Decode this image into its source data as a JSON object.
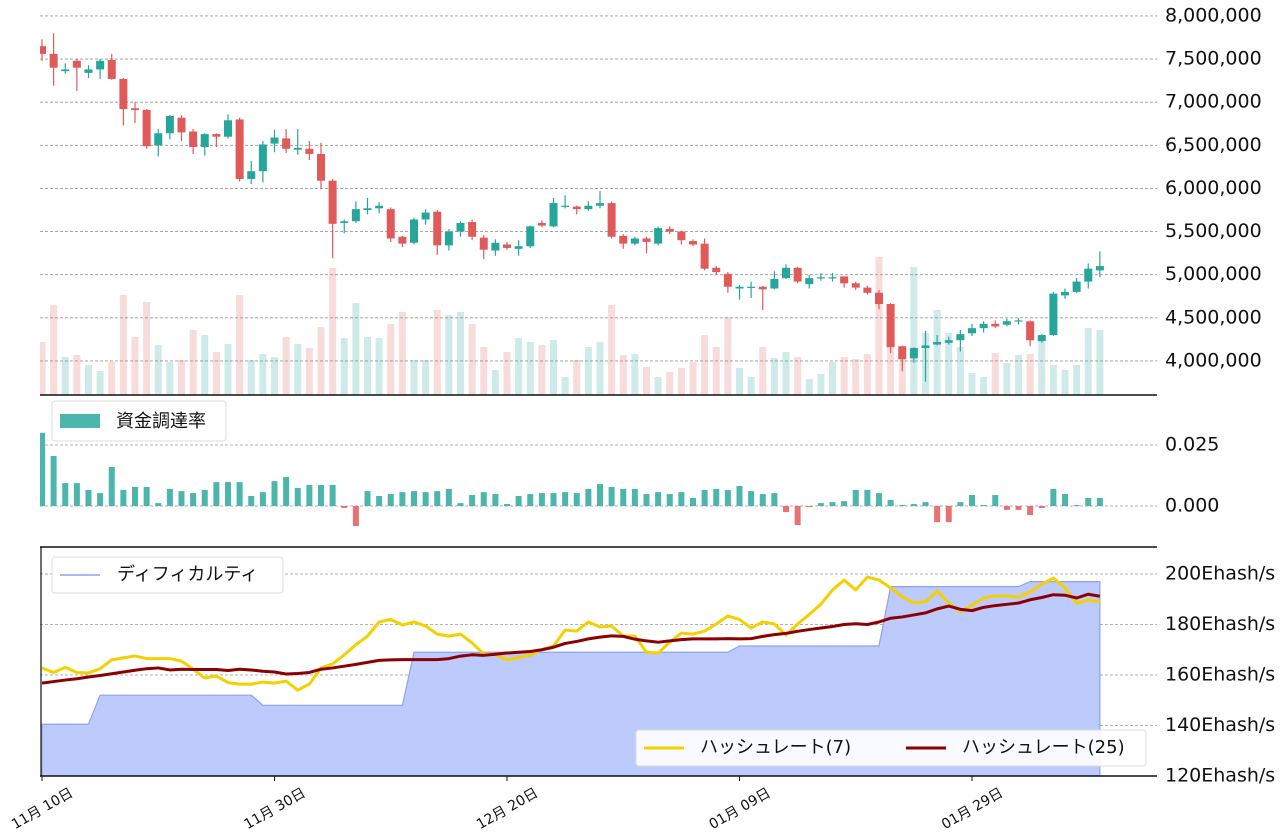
{
  "chart_data": [
    {
      "type": "candlestick",
      "x": [
        "11-10",
        "11-11",
        "11-12",
        "11-13",
        "11-14",
        "11-15",
        "11-16",
        "11-17",
        "11-18",
        "11-19",
        "11-20",
        "11-21",
        "11-22",
        "11-23",
        "11-24",
        "11-25",
        "11-26",
        "11-27",
        "11-28",
        "11-29",
        "11-30",
        "12-01",
        "12-02",
        "12-03",
        "12-04",
        "12-05",
        "12-06",
        "12-07",
        "12-08",
        "12-09",
        "12-10",
        "12-11",
        "12-12",
        "12-13",
        "12-14",
        "12-15",
        "12-16",
        "12-17",
        "12-18",
        "12-19",
        "12-20",
        "12-21",
        "12-22",
        "12-23",
        "12-24",
        "12-25",
        "12-26",
        "12-27",
        "12-28",
        "12-29",
        "12-30",
        "12-31",
        "01-01",
        "01-02",
        "01-03",
        "01-04",
        "01-05",
        "01-06",
        "01-07",
        "01-08",
        "01-09",
        "01-10",
        "01-11",
        "01-12",
        "01-13",
        "01-14",
        "01-15",
        "01-16",
        "01-17",
        "01-18",
        "01-19",
        "01-20",
        "01-21",
        "01-22",
        "01-23",
        "01-24",
        "01-25",
        "01-26",
        "01-27",
        "01-28",
        "01-29",
        "01-30",
        "01-31",
        "02-01",
        "02-02",
        "02-03",
        "02-04",
        "02-05",
        "02-06",
        "02-07",
        "02-08",
        "02-09"
      ],
      "open": [
        7650000,
        7560000,
        7360000,
        7480000,
        7340000,
        7380000,
        7490000,
        7270000,
        6930000,
        6910000,
        6500000,
        6640000,
        6820000,
        6660000,
        6480000,
        6630000,
        6600000,
        6800000,
        6110000,
        6200000,
        6520000,
        6580000,
        6450000,
        6460000,
        6400000,
        6090000,
        5600000,
        5620000,
        5750000,
        5770000,
        5760000,
        5440000,
        5370000,
        5640000,
        5730000,
        5340000,
        5500000,
        5610000,
        5430000,
        5280000,
        5350000,
        5300000,
        5330000,
        5600000,
        5560000,
        5790000,
        5790000,
        5760000,
        5800000,
        5830000,
        5450000,
        5360000,
        5420000,
        5360000,
        5530000,
        5500000,
        5390000,
        5360000,
        5080000,
        5010000,
        4840000,
        4850000,
        4860000,
        4840000,
        4960000,
        5080000,
        4890000,
        4960000,
        4960000,
        4980000,
        4900000,
        4850000,
        4790000,
        4660000,
        4170000,
        4030000,
        4150000,
        4190000,
        4210000,
        4240000,
        4320000,
        4380000,
        4430000,
        4420000,
        4460000,
        4460000,
        4230000,
        4300000,
        4760000,
        4800000,
        4920000,
        5050000
      ],
      "high": [
        7730000,
        7800000,
        7450000,
        7500000,
        7430000,
        7500000,
        7560000,
        7280000,
        7000000,
        6920000,
        6690000,
        6850000,
        6850000,
        6690000,
        6640000,
        6640000,
        6860000,
        6820000,
        6320000,
        6550000,
        6680000,
        6690000,
        6690000,
        6550000,
        6530000,
        6110000,
        5640000,
        5850000,
        5890000,
        5840000,
        5780000,
        5450000,
        5660000,
        5760000,
        5750000,
        5530000,
        5620000,
        5640000,
        5460000,
        5410000,
        5380000,
        5400000,
        5570000,
        5630000,
        5890000,
        5920000,
        5800000,
        5850000,
        5970000,
        5850000,
        5470000,
        5440000,
        5440000,
        5560000,
        5560000,
        5510000,
        5410000,
        5420000,
        5100000,
        5030000,
        4880000,
        4920000,
        4870000,
        5040000,
        5120000,
        5090000,
        5000000,
        5020000,
        5020000,
        4980000,
        4920000,
        4870000,
        4820000,
        4670000,
        4180000,
        4160000,
        4350000,
        4300000,
        4280000,
        4360000,
        4430000,
        4460000,
        4470000,
        4490000,
        4500000,
        4470000,
        4310000,
        4800000,
        4840000,
        4960000,
        5130000,
        5270000
      ],
      "low": [
        7480000,
        7190000,
        7330000,
        7130000,
        7280000,
        7270000,
        7260000,
        6730000,
        6760000,
        6460000,
        6370000,
        6570000,
        6550000,
        6400000,
        6380000,
        6480000,
        6580000,
        6080000,
        6050000,
        6070000,
        6420000,
        6410000,
        6390000,
        6330000,
        5990000,
        5190000,
        5480000,
        5600000,
        5700000,
        5710000,
        5380000,
        5320000,
        5350000,
        5580000,
        5230000,
        5280000,
        5440000,
        5400000,
        5180000,
        5220000,
        5290000,
        5220000,
        5310000,
        5550000,
        5550000,
        5770000,
        5700000,
        5740000,
        5770000,
        5420000,
        5300000,
        5340000,
        5250000,
        5340000,
        5470000,
        5350000,
        5330000,
        5050000,
        5000000,
        4790000,
        4710000,
        4730000,
        4590000,
        4830000,
        4950000,
        4900000,
        4840000,
        4930000,
        4920000,
        4850000,
        4820000,
        4770000,
        4600000,
        4090000,
        3880000,
        3980000,
        3760000,
        4180000,
        4190000,
        4110000,
        4290000,
        4330000,
        4380000,
        4400000,
        4420000,
        4170000,
        4210000,
        4290000,
        4720000,
        4790000,
        4840000,
        4970000
      ],
      "close": [
        7560000,
        7400000,
        7380000,
        7400000,
        7380000,
        7480000,
        7270000,
        6920000,
        6910000,
        6490000,
        6640000,
        6840000,
        6650000,
        6480000,
        6630000,
        6600000,
        6790000,
        6110000,
        6200000,
        6510000,
        6590000,
        6460000,
        6470000,
        6400000,
        6090000,
        5590000,
        5620000,
        5760000,
        5770000,
        5800000,
        5420000,
        5360000,
        5640000,
        5720000,
        5340000,
        5500000,
        5600000,
        5440000,
        5290000,
        5370000,
        5310000,
        5330000,
        5560000,
        5570000,
        5830000,
        5800000,
        5760000,
        5800000,
        5830000,
        5440000,
        5360000,
        5420000,
        5380000,
        5540000,
        5500000,
        5400000,
        5350000,
        5070000,
        5030000,
        4860000,
        4860000,
        4860000,
        4830000,
        4950000,
        5080000,
        4920000,
        4960000,
        4970000,
        4970000,
        4900000,
        4850000,
        4790000,
        4660000,
        4160000,
        4020000,
        4150000,
        4180000,
        4220000,
        4240000,
        4310000,
        4380000,
        4430000,
        4400000,
        4460000,
        4470000,
        4240000,
        4300000,
        4780000,
        4800000,
        4920000,
        5070000,
        5100000
      ],
      "volume": [
        53,
        90,
        38,
        40,
        30,
        24,
        33,
        100,
        58,
        93,
        50,
        33,
        35,
        65,
        60,
        43,
        51,
        100,
        35,
        41,
        38,
        58,
        51,
        47,
        68,
        127,
        57,
        92,
        58,
        57,
        71,
        83,
        35,
        35,
        85,
        80,
        83,
        71,
        48,
        25,
        43,
        57,
        53,
        50,
        55,
        18,
        35,
        48,
        53,
        90,
        40,
        41,
        28,
        18,
        23,
        27,
        33,
        60,
        48,
        78,
        27,
        18,
        48,
        37,
        43,
        38,
        16,
        21,
        33,
        38,
        36,
        41,
        138,
        74,
        48,
        128,
        62,
        85,
        62,
        48,
        22,
        18,
        42,
        32,
        40,
        41,
        58,
        30,
        25,
        30,
        67,
        65
      ],
      "up_color": "#26a69a",
      "down_color": "#e05a5a",
      "ylim": [
        3605000,
        8185000
      ],
      "yticks": [
        {
          "value": 4000000,
          "label": "4,000,000"
        },
        {
          "value": 4500000,
          "label": "4,500,000"
        },
        {
          "value": 5000000,
          "label": "5,000,000"
        },
        {
          "value": 5500000,
          "label": "5,500,000"
        },
        {
          "value": 6000000,
          "label": "6,000,000"
        },
        {
          "value": 6500000,
          "label": "6,500,000"
        },
        {
          "value": 7000000,
          "label": "7,000,000"
        },
        {
          "value": 7500000,
          "label": "7,500,000"
        },
        {
          "value": 8000000,
          "label": "8,000,000"
        }
      ],
      "grid": true
    },
    {
      "type": "bar",
      "series": [
        {
          "name": "資金調達率",
          "color": "#4db6ac",
          "values": [
            0.03,
            0.0205,
            0.0094,
            0.0094,
            0.0066,
            0.0053,
            0.016,
            0.0066,
            0.0078,
            0.0078,
            0.0012,
            0.007,
            0.0061,
            0.0053,
            0.0066,
            0.0098,
            0.0098,
            0.0098,
            0.0041,
            0.0057,
            0.0102,
            0.0119,
            0.0074,
            0.0086,
            0.0086,
            0.0086,
            -0.0008,
            -0.0082,
            0.0061,
            0.0041,
            0.0049,
            0.0057,
            0.0061,
            0.0057,
            0.0061,
            0.007,
            0.0012,
            0.0045,
            0.0057,
            0.0049,
            0.0008,
            0.0041,
            0.0049,
            0.0053,
            0.0053,
            0.0057,
            0.0053,
            0.007,
            0.009,
            0.0078,
            0.007,
            0.007,
            0.0049,
            0.0057,
            0.0049,
            0.0057,
            0.0033,
            0.0066,
            0.007,
            0.0066,
            0.0082,
            0.0061,
            0.0049,
            0.0053,
            -0.0025,
            -0.0078,
            -0.0004,
            0.0012,
            0.0016,
            0.002,
            0.0066,
            0.0066,
            0.0053,
            0.0025,
            0.0004,
            0.0008,
            0.0016,
            -0.0066,
            -0.0066,
            0.0016,
            0.0045,
            0.0004,
            0.0045,
            -0.0016,
            -0.0016,
            -0.0037,
            -0.0008,
            0.007,
            0.0049,
            0.0004,
            0.0033,
            0.0033
          ]
        }
      ],
      "negative_color": "#e57373",
      "ylim": [
        -0.0168,
        0.0455
      ],
      "yticks": [
        {
          "value": 0,
          "label": "0.000"
        },
        {
          "value": 0.025,
          "label": "0.025"
        }
      ],
      "grid": true,
      "legend": "upper left"
    },
    {
      "type": "line",
      "series": [
        {
          "name": "ディフィカルティ",
          "color": "#8ea3ef",
          "fill": "#bccafc",
          "style": "area",
          "values": [
            140.5,
            140.5,
            140.5,
            140.5,
            140.5,
            152,
            152,
            152,
            152,
            152,
            152,
            152,
            152,
            152,
            152,
            152,
            152,
            152,
            152,
            148,
            148,
            148,
            148,
            148,
            148,
            148,
            148,
            148,
            148,
            148,
            148,
            148,
            169,
            169,
            169,
            169,
            169,
            169,
            169,
            169,
            169,
            169,
            169,
            169,
            169,
            169,
            169,
            169,
            169,
            169,
            169,
            169,
            169,
            169,
            169,
            169,
            169,
            169,
            169,
            169,
            171.5,
            171.5,
            171.5,
            171.5,
            171.5,
            171.5,
            171.5,
            171.5,
            171.5,
            171.5,
            171.5,
            171.5,
            171.5,
            195,
            195,
            195,
            195,
            195,
            195,
            195,
            195,
            195,
            195,
            195,
            195,
            197,
            197,
            197,
            197,
            197,
            197,
            197
          ]
        },
        {
          "name": "ハッシュレート(7)",
          "color": "#f5d000",
          "style": "line",
          "values": [
            162.8,
            161,
            163,
            161,
            160.8,
            162.5,
            166,
            166.8,
            167.5,
            166.5,
            166.5,
            166.5,
            165.5,
            162.4,
            158.8,
            159.6,
            157,
            156.4,
            156.4,
            157.2,
            156.8,
            157.6,
            154,
            156.4,
            162.8,
            164.4,
            168,
            172,
            175.4,
            181,
            182,
            179.8,
            181,
            179.4,
            176.2,
            175.4,
            176.2,
            172.7,
            168.3,
            168,
            166,
            166.9,
            167.9,
            170,
            171.5,
            177.8,
            177.4,
            181,
            179,
            179.4,
            175.4,
            175.4,
            169,
            168.7,
            173,
            176.6,
            176.2,
            177.4,
            180.2,
            183.4,
            182,
            178.6,
            181,
            180.2,
            175.8,
            180.2,
            184,
            188,
            193.7,
            197.6,
            193.7,
            198.8,
            197.6,
            194.5,
            190.9,
            188.5,
            189,
            193.3,
            188.5,
            185,
            187.7,
            190.5,
            191.3,
            191.3,
            190.9,
            192.9,
            196,
            198.4,
            194.5,
            188.5,
            189.7,
            189
          ]
        },
        {
          "name": "ハッシュレート(25)",
          "color": "#8b0000",
          "style": "line",
          "values": [
            156.8,
            157.4,
            158,
            158.5,
            159.2,
            159.8,
            160.5,
            161.2,
            161.9,
            162.5,
            162.8,
            162,
            162.3,
            162.2,
            162.2,
            162.2,
            161.8,
            162.3,
            162,
            161.5,
            161.2,
            160.4,
            160.6,
            161,
            162.3,
            162.8,
            163.5,
            164.2,
            165,
            165.8,
            166,
            166.1,
            166.1,
            166.1,
            166.1,
            166.5,
            167.5,
            168,
            167.8,
            168.2,
            168.7,
            169,
            169.3,
            170,
            171,
            172.5,
            173.3,
            174.3,
            175,
            175.5,
            175.3,
            174.2,
            173.5,
            173,
            173.5,
            174,
            174.3,
            174.3,
            174.3,
            174.4,
            174.3,
            174.4,
            175.3,
            176,
            176.5,
            177.3,
            178,
            178.6,
            179.2,
            180,
            180.3,
            180,
            181,
            182.5,
            183,
            183.8,
            184.6,
            186.2,
            187.3,
            186,
            185.5,
            186.8,
            187.5,
            188,
            188.5,
            189.8,
            190.7,
            191.8,
            191.6,
            190.5,
            192,
            191.2
          ]
        }
      ],
      "ylim": [
        120,
        210.7
      ],
      "yticks": [
        {
          "value": 120,
          "label": "120Ehash/s"
        },
        {
          "value": 140,
          "label": "140Ehash/s"
        },
        {
          "value": 160,
          "label": "160Ehash/s"
        },
        {
          "value": 180,
          "label": "180Ehash/s"
        },
        {
          "value": 200,
          "label": "200Ehash/s"
        }
      ],
      "xticks": [
        {
          "value": "11-10",
          "label": "11月 10日"
        },
        {
          "value": "11-30",
          "label": "11月 30日"
        },
        {
          "value": "12-20",
          "label": "12月 20日"
        },
        {
          "value": "01-09",
          "label": "01月 09日"
        },
        {
          "value": "01-29",
          "label": "01月 29日"
        }
      ],
      "grid": true
    }
  ]
}
